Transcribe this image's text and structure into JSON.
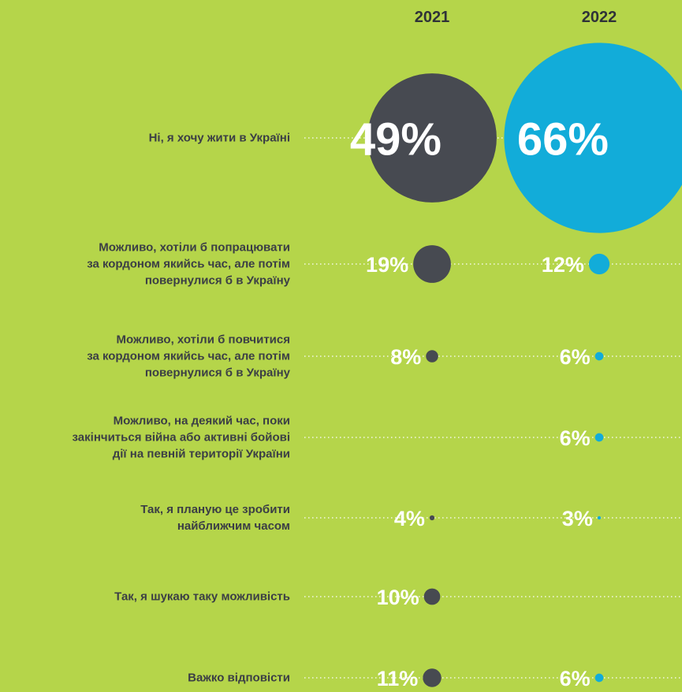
{
  "chart_data": {
    "type": "bubble",
    "categories": [
      "Ні, я хочу жити в Україні",
      "Можливо, хотіли б попрацювати\nза кордоном якийсь час, але потім\nповернулися б в Україну",
      "Можливо, хотіли б повчитися\nза кордоном якийсь час, але потім\nповернулися б в Україну",
      "Можливо, на деякий час, поки\nзакінчиться війна або активні бойові\nдії на певній території України",
      "Так, я планую це зробити\nнайближчим часом",
      "Так, я шукаю таку можливість",
      "Важко відповісти"
    ],
    "series": [
      {
        "name": "2021",
        "color": "#474a51",
        "values": [
          49,
          19,
          8,
          null,
          4,
          10,
          11
        ],
        "value_labels": [
          "49%",
          "19%",
          "8%",
          null,
          "4%",
          "10%",
          "11%"
        ]
      },
      {
        "name": "2022",
        "color": "#12acd9",
        "values": [
          66,
          12,
          6,
          6,
          3,
          null,
          6
        ],
        "value_labels": [
          "66%",
          "12%",
          "6%",
          "6%",
          "3%",
          null,
          "6%"
        ]
      }
    ]
  }
}
